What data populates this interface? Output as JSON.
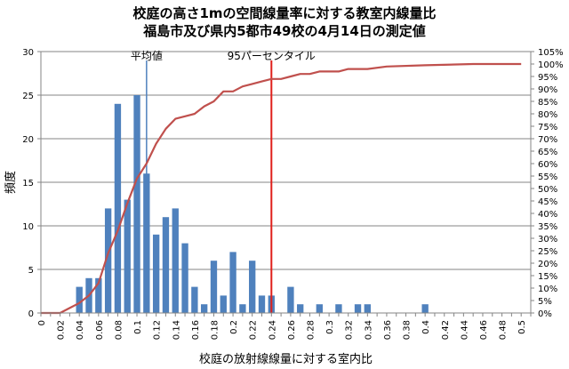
{
  "chart_data": {
    "type": "bar",
    "title": "校庭の高さ1mの空間線量率に対する教室内線量比",
    "subtitle": "福島市及び県内5都市49校の4月14日の測定値",
    "xlabel": "校庭の放射線線量に対する室内比",
    "ylabel": "頻度",
    "xlim": [
      0,
      0.51
    ],
    "ylim": [
      0,
      30
    ],
    "y2lim": [
      0,
      105
    ],
    "yticks": [
      0,
      5,
      10,
      15,
      20,
      25,
      30
    ],
    "y2ticks": [
      "0%",
      "5%",
      "10%",
      "15%",
      "20%",
      "25%",
      "30%",
      "35%",
      "40%",
      "45%",
      "50%",
      "55%",
      "60%",
      "65%",
      "70%",
      "75%",
      "80%",
      "85%",
      "90%",
      "95%",
      "100%",
      "105%"
    ],
    "xticks": [
      "0",
      "0.02",
      "0.04",
      "0.06",
      "0.08",
      "0.1",
      "0.12",
      "0.14",
      "0.16",
      "0.18",
      "0.2",
      "0.22",
      "0.24",
      "0.26",
      "0.28",
      "0.3",
      "0.32",
      "0.34",
      "0.36",
      "0.38",
      "0.4",
      "0.42",
      "0.44",
      "0.46",
      "0.48",
      "0.5"
    ],
    "bar_color": "#4f81bd",
    "line_color": "#c0504d",
    "histogram": {
      "x": [
        0.04,
        0.05,
        0.06,
        0.07,
        0.08,
        0.09,
        0.1,
        0.11,
        0.12,
        0.13,
        0.14,
        0.15,
        0.16,
        0.17,
        0.18,
        0.19,
        0.2,
        0.21,
        0.22,
        0.23,
        0.24,
        0.26,
        0.27,
        0.29,
        0.31,
        0.33,
        0.34,
        0.4
      ],
      "values": [
        3,
        4,
        4,
        12,
        24,
        13,
        25,
        16,
        9,
        11,
        12,
        8,
        3,
        1,
        6,
        2,
        7,
        1,
        6,
        2,
        2,
        3,
        1,
        1,
        1,
        1,
        1,
        1
      ]
    },
    "cumulative": {
      "x": [
        0,
        0.02,
        0.03,
        0.04,
        0.05,
        0.06,
        0.07,
        0.08,
        0.09,
        0.1,
        0.11,
        0.12,
        0.13,
        0.14,
        0.15,
        0.16,
        0.17,
        0.18,
        0.19,
        0.2,
        0.21,
        0.22,
        0.23,
        0.24,
        0.25,
        0.26,
        0.27,
        0.28,
        0.29,
        0.3,
        0.31,
        0.32,
        0.33,
        0.34,
        0.36,
        0.4,
        0.45,
        0.5
      ],
      "percent": [
        0,
        0,
        2,
        4,
        7,
        12,
        24,
        33,
        44,
        54,
        60,
        68,
        74,
        78,
        79,
        80,
        83,
        85,
        89,
        89,
        91,
        92,
        93,
        94,
        94,
        95,
        96,
        96,
        97,
        97,
        97,
        98,
        98,
        98,
        99,
        99.5,
        100,
        100
      ]
    },
    "annotations": [
      {
        "label": "平均値",
        "x": 0.11,
        "color": "#4f81bd"
      },
      {
        "label": "95パーセンタイル",
        "x": 0.24,
        "color": "#e0201b"
      }
    ]
  }
}
